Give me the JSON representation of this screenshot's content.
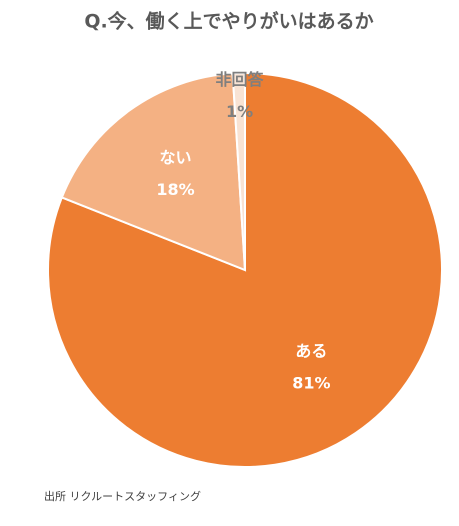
{
  "chart_data": {
    "type": "pie",
    "title": "Q.今、働く上でやりがいはあるか",
    "categories": [
      "ある",
      "ない",
      "非回答"
    ],
    "values": [
      81,
      18,
      1
    ],
    "value_labels": [
      "81%",
      "18%",
      "1%"
    ],
    "colors": [
      "#ED7D31",
      "#F4B183",
      "#F8E3D4"
    ],
    "source": "出所 リクルートスタッフィング"
  }
}
